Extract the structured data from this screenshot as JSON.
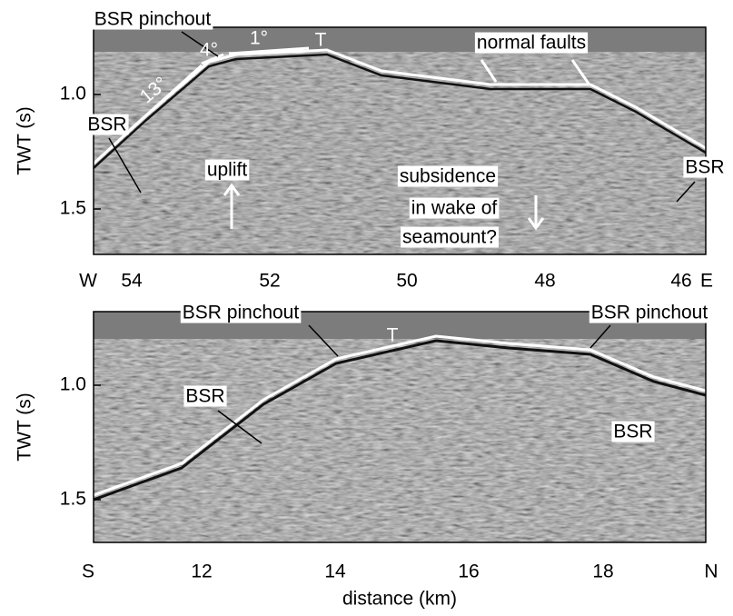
{
  "panels": [
    {
      "y_label": "TWT (s)",
      "y_ticks": [
        "1.0",
        "1.5"
      ],
      "x_ticks": [
        "W",
        "54",
        "52",
        "50",
        "48",
        "46",
        "E"
      ],
      "annotations": [
        "BSR pinchout",
        "4°",
        "1°",
        "T",
        "13°",
        "BSR",
        "uplift",
        "normal faults",
        "subsidence",
        "in wake of",
        "seamount?",
        "BSR"
      ]
    },
    {
      "y_label": "TWT (s)",
      "y_ticks": [
        "1.0",
        "1.5"
      ],
      "x_ticks": [
        "S",
        "12",
        "14",
        "16",
        "18",
        "N"
      ],
      "annotations": [
        "BSR pinchout",
        "T",
        "BSR pinchout",
        "BSR",
        "BSR"
      ]
    }
  ],
  "x_label": "distance (km)"
}
